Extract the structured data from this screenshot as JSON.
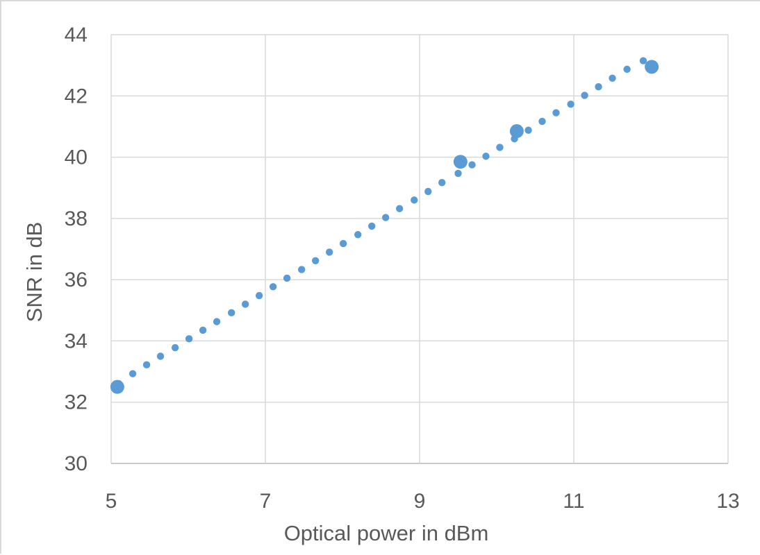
{
  "chart_data": {
    "type": "scatter",
    "title": "",
    "xlabel": "Optical power in dBm",
    "ylabel": "SNR in dB",
    "xlim": [
      5,
      13
    ],
    "ylim": [
      30,
      44
    ],
    "xticks": [
      "5",
      "7",
      "9",
      "11",
      "13"
    ],
    "yticks": [
      "30",
      "32",
      "34",
      "36",
      "38",
      "40",
      "42",
      "44"
    ],
    "grid": true,
    "legend": "none",
    "color": "#5b9bd5",
    "series": [
      {
        "marker": "small-dot",
        "points": [
          [
            5.1,
            32.6
          ],
          [
            5.28,
            32.93
          ],
          [
            5.46,
            33.22
          ],
          [
            5.64,
            33.5
          ],
          [
            5.83,
            33.78
          ],
          [
            6.01,
            34.07
          ],
          [
            6.19,
            34.35
          ],
          [
            6.37,
            34.63
          ],
          [
            6.56,
            34.92
          ],
          [
            6.74,
            35.2
          ],
          [
            6.92,
            35.48
          ],
          [
            7.1,
            35.77
          ],
          [
            7.28,
            36.05
          ],
          [
            7.47,
            36.33
          ],
          [
            7.65,
            36.62
          ],
          [
            7.83,
            36.9
          ],
          [
            8.01,
            37.18
          ],
          [
            8.2,
            37.47
          ],
          [
            8.38,
            37.75
          ],
          [
            8.56,
            38.03
          ],
          [
            8.74,
            38.32
          ],
          [
            8.93,
            38.6
          ],
          [
            9.11,
            38.88
          ],
          [
            9.29,
            39.17
          ],
          [
            9.5,
            39.47
          ],
          [
            9.68,
            39.75
          ],
          [
            9.86,
            40.03
          ],
          [
            10.04,
            40.32
          ],
          [
            10.23,
            40.6
          ],
          [
            10.41,
            40.88
          ],
          [
            10.59,
            41.17
          ],
          [
            10.77,
            41.45
          ],
          [
            10.96,
            41.73
          ],
          [
            11.14,
            42.02
          ],
          [
            11.32,
            42.3
          ],
          [
            11.5,
            42.58
          ],
          [
            11.69,
            42.87
          ],
          [
            11.9,
            43.15
          ]
        ]
      },
      {
        "marker": "large-dot",
        "points": [
          [
            5.08,
            32.5
          ],
          [
            9.53,
            39.85
          ],
          [
            10.26,
            40.85
          ],
          [
            12.01,
            42.95
          ]
        ]
      }
    ]
  }
}
